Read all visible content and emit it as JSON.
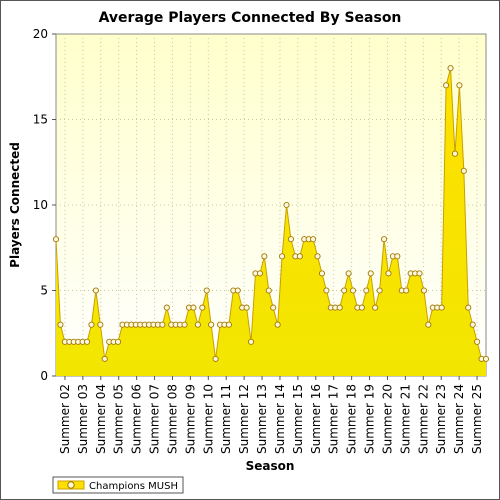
{
  "chart_data": {
    "type": "area",
    "title": "Average Players Connected By Season",
    "xlabel": "Season",
    "ylabel": "Players Connected",
    "ylim": [
      0,
      20
    ],
    "yticks": [
      0,
      5,
      10,
      15,
      20
    ],
    "grid": true,
    "legend_position": "bottom-left",
    "colors": {
      "fill_top": "#ffe000",
      "fill_bottom": "#f2e600",
      "line": "#c8a000",
      "marker_fill": "#fff8dc",
      "marker_stroke": "#a07800",
      "plot_bg_top": "#ffffcc",
      "plot_bg_bottom": "#ffffff",
      "grid": "#c8c8a0"
    },
    "x_tick_labels": [
      "Summer 02",
      "Summer 03",
      "Summer 04",
      "Summer 05",
      "Summer 06",
      "Summer 07",
      "Summer 08",
      "Summer 09",
      "Summer 10",
      "Summer 11",
      "Summer 12",
      "Summer 13",
      "Summer 14",
      "Summer 15",
      "Summer 16",
      "Summer 17",
      "Summer 18",
      "Summer 19",
      "Summer 20",
      "Summer 21",
      "Summer 22",
      "Summer 23",
      "Summer 24",
      "Summer 25"
    ],
    "series": [
      {
        "name": "Champions MUSH",
        "values": [
          8,
          3,
          2,
          2,
          2,
          2,
          2,
          2,
          3,
          5,
          3,
          1,
          2,
          2,
          2,
          3,
          3,
          3,
          3,
          3,
          3,
          3,
          3,
          3,
          3,
          4,
          3,
          3,
          3,
          3,
          4,
          4,
          3,
          4,
          5,
          3,
          1,
          3,
          3,
          3,
          5,
          5,
          4,
          4,
          2,
          6,
          6,
          7,
          5,
          4,
          3,
          7,
          10,
          8,
          7,
          7,
          8,
          8,
          8,
          7,
          6,
          5,
          4,
          4,
          4,
          5,
          6,
          5,
          4,
          4,
          5,
          6,
          4,
          5,
          8,
          6,
          7,
          7,
          5,
          5,
          6,
          6,
          6,
          5,
          3,
          4,
          4,
          4,
          17,
          18,
          13,
          17,
          12,
          4,
          3,
          2,
          1,
          1
        ]
      }
    ]
  }
}
